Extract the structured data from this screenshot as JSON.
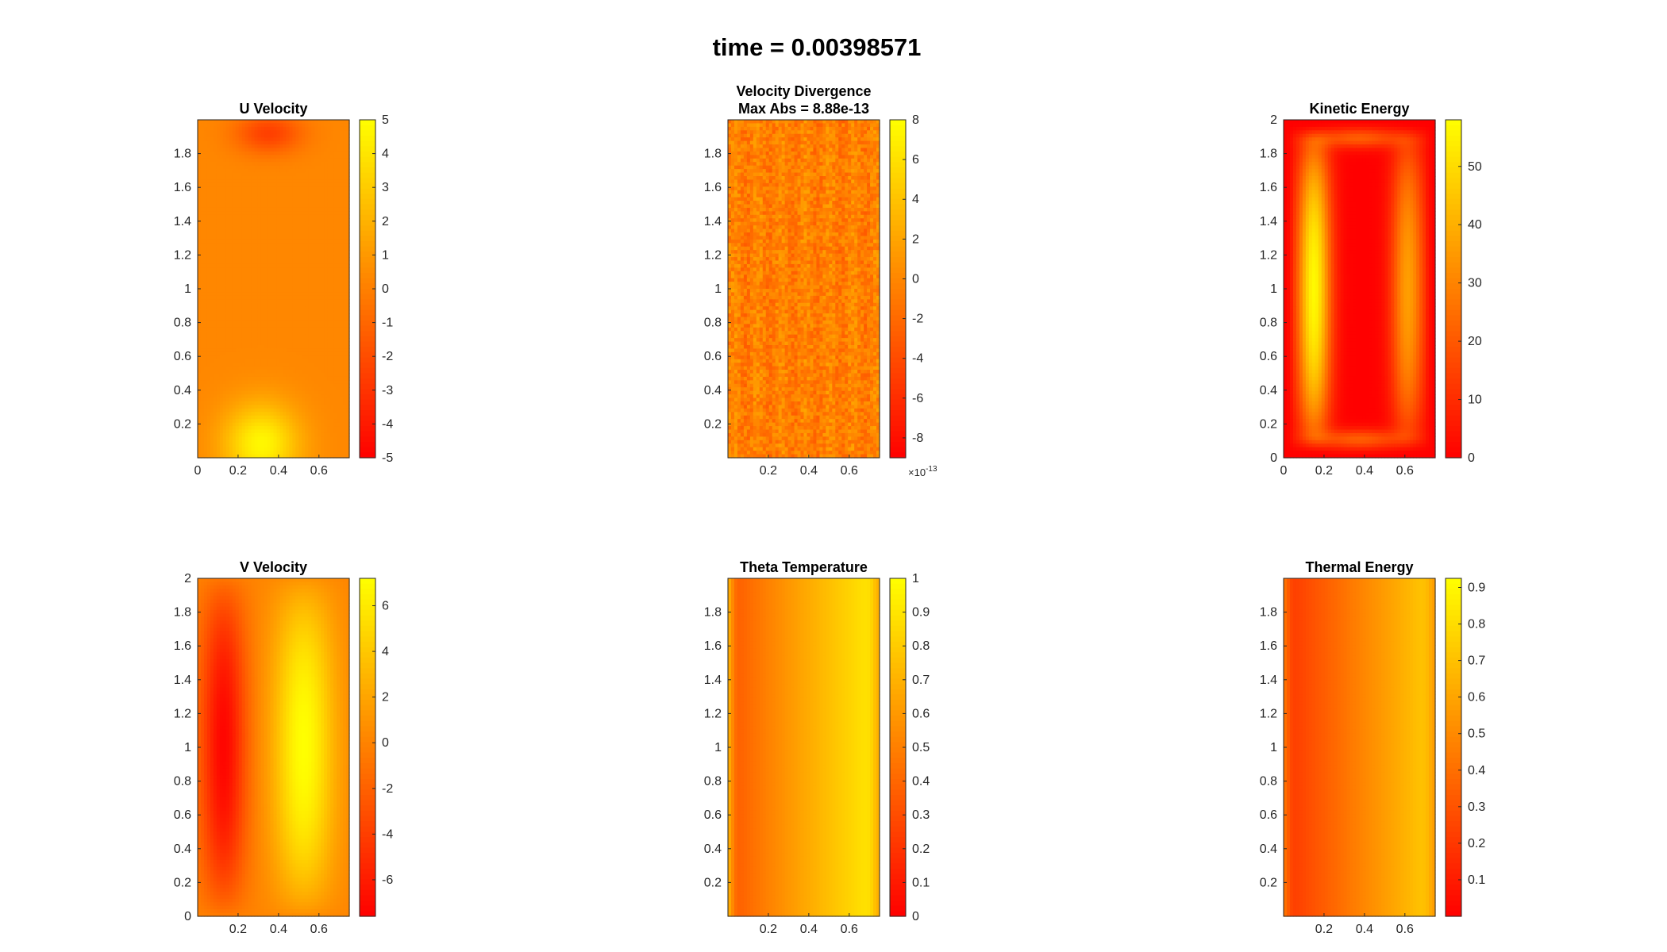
{
  "figure_title": "time = 0.00398571",
  "colors": {
    "colormap": "autumn",
    "map_low": "#ff0000",
    "map_high": "#ffff00",
    "axis": "#262626"
  },
  "chart_data": [
    {
      "type": "heatmap",
      "title": "U Velocity",
      "subtitle": "",
      "xlim": [
        0,
        0.75
      ],
      "ylim": [
        0,
        2
      ],
      "xticks": [
        "0",
        "0.2",
        "0.4",
        "0.6"
      ],
      "yticks": [
        "0.2",
        "0.4",
        "0.6",
        "0.8",
        "1",
        "1.2",
        "1.4",
        "1.6",
        "1.8"
      ],
      "clim": [
        -5,
        5
      ],
      "cticks": [
        "5",
        "4",
        "3",
        "2",
        "1",
        "0",
        "-1",
        "-2",
        "-3",
        "-4",
        "-5"
      ],
      "cexp": "",
      "field": "u_velocity",
      "grid": false
    },
    {
      "type": "heatmap",
      "title": "Velocity Divergence",
      "subtitle": "Max Abs = 8.88e-13",
      "xlim": [
        0,
        0.75
      ],
      "ylim": [
        0,
        2
      ],
      "xticks": [
        "0.2",
        "0.4",
        "0.6"
      ],
      "yticks": [
        "0.2",
        "0.4",
        "0.6",
        "0.8",
        "1",
        "1.2",
        "1.4",
        "1.6",
        "1.8"
      ],
      "clim": [
        -9,
        8
      ],
      "cticks": [
        "8",
        "6",
        "4",
        "2",
        "0",
        "-2",
        "-4",
        "-6",
        "-8"
      ],
      "cexp": "-13",
      "field": "divergence_noise",
      "grid": false
    },
    {
      "type": "heatmap",
      "title": "Kinetic Energy",
      "subtitle": "",
      "xlim": [
        0,
        0.75
      ],
      "ylim": [
        0,
        2
      ],
      "xticks": [
        "0",
        "0.2",
        "0.4",
        "0.6"
      ],
      "yticks": [
        "0",
        "0.2",
        "0.4",
        "0.6",
        "0.8",
        "1",
        "1.2",
        "1.4",
        "1.6",
        "1.8",
        "2"
      ],
      "clim": [
        0,
        58
      ],
      "cticks": [
        "50",
        "40",
        "30",
        "20",
        "10",
        "0"
      ],
      "cexp": "",
      "field": "kinetic_energy",
      "grid": false
    },
    {
      "type": "heatmap",
      "title": "V Velocity",
      "subtitle": "",
      "xlim": [
        0,
        0.75
      ],
      "ylim": [
        0,
        2
      ],
      "xticks": [
        "0.2",
        "0.4",
        "0.6"
      ],
      "yticks": [
        "0",
        "0.2",
        "0.4",
        "0.6",
        "0.8",
        "1",
        "1.2",
        "1.4",
        "1.6",
        "1.8",
        "2"
      ],
      "clim": [
        -7.6,
        7.2
      ],
      "cticks": [
        "6",
        "4",
        "2",
        "0",
        "-2",
        "-4",
        "-6"
      ],
      "cexp": "",
      "field": "v_velocity",
      "grid": false
    },
    {
      "type": "heatmap",
      "title": "Theta Temperature",
      "subtitle": "",
      "xlim": [
        0,
        0.75
      ],
      "ylim": [
        0,
        2
      ],
      "xticks": [
        "0.2",
        "0.4",
        "0.6"
      ],
      "yticks": [
        "0.2",
        "0.4",
        "0.6",
        "0.8",
        "1",
        "1.2",
        "1.4",
        "1.6",
        "1.8"
      ],
      "clim": [
        0,
        1
      ],
      "cticks": [
        "1",
        "0.9",
        "0.8",
        "0.7",
        "0.6",
        "0.5",
        "0.4",
        "0.3",
        "0.2",
        "0.1",
        "0"
      ],
      "cexp": "",
      "field": "temperature",
      "grid": false
    },
    {
      "type": "heatmap",
      "title": "Thermal Energy",
      "subtitle": "",
      "xlim": [
        0,
        0.75
      ],
      "ylim": [
        0,
        2
      ],
      "xticks": [
        "0.2",
        "0.4",
        "0.6"
      ],
      "yticks": [
        "0.2",
        "0.4",
        "0.6",
        "0.8",
        "1",
        "1.2",
        "1.4",
        "1.6",
        "1.8"
      ],
      "clim": [
        0,
        0.925
      ],
      "cticks": [
        "0.9",
        "0.8",
        "0.7",
        "0.6",
        "0.5",
        "0.4",
        "0.3",
        "0.2",
        "0.1"
      ],
      "cexp": "",
      "field": "thermal_energy",
      "grid": false
    }
  ]
}
